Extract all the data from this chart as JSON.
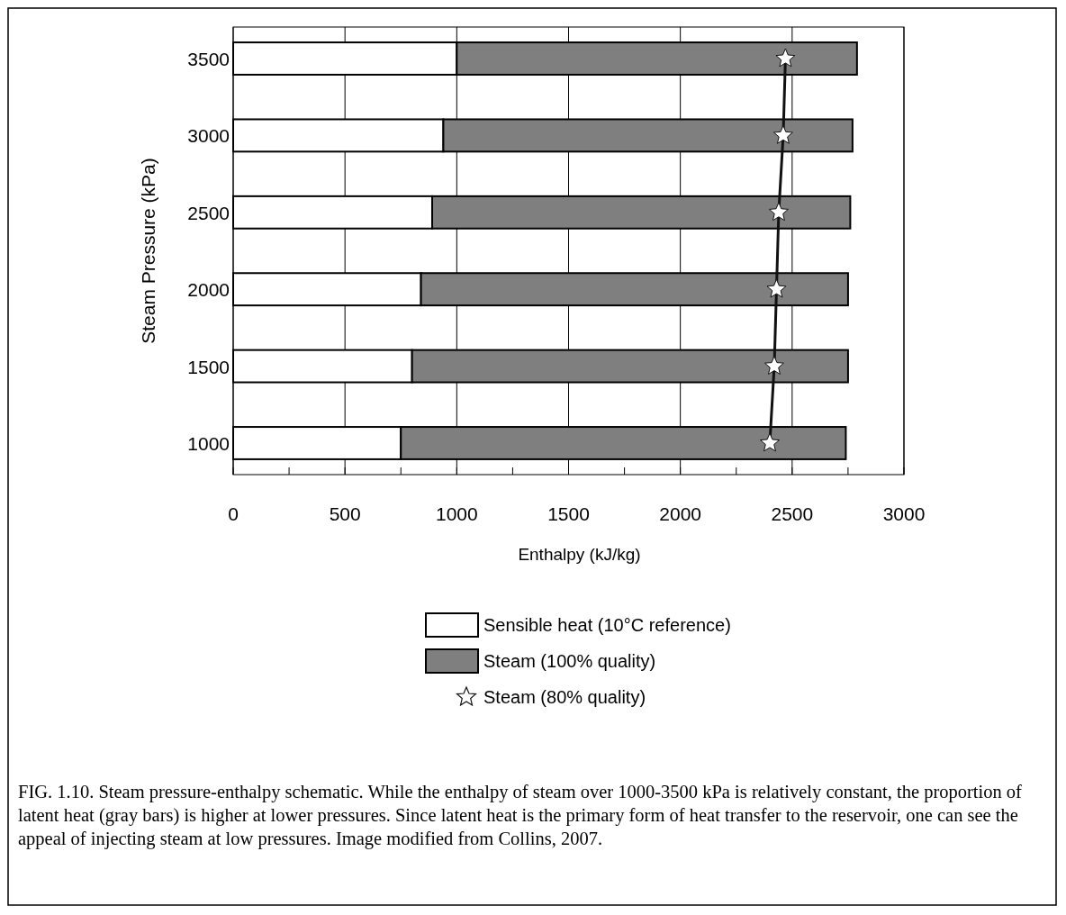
{
  "chart_data": {
    "type": "bar",
    "orientation": "horizontal",
    "stacked": true,
    "ylabel": "Steam Pressure (kPa)",
    "xlabel": "Enthalpy (kJ/kg)",
    "categories": [
      "3500",
      "3000",
      "2500",
      "2000",
      "1500",
      "1000"
    ],
    "series": [
      {
        "name": "Sensible heat (10°C reference)",
        "color": "#ffffff",
        "values": [
          1000,
          940,
          890,
          840,
          800,
          750
        ]
      },
      {
        "name": "Steam (100% quality)",
        "color": "#7f7f7f",
        "values": [
          1790,
          1830,
          1870,
          1910,
          1950,
          1990
        ]
      },
      {
        "name": "Steam (80% quality)",
        "type": "line",
        "marker": "star",
        "color": "#111111",
        "values": [
          2470,
          2460,
          2440,
          2430,
          2420,
          2400
        ]
      }
    ],
    "xlim": [
      0,
      3000
    ],
    "xticks": [
      0,
      {
        "value": 250,
        "label": null
      },
      500,
      {
        "value": 750,
        "label": null
      },
      1000,
      {
        "value": 1250,
        "label": null
      },
      1500,
      {
        "value": 1750,
        "label": null
      },
      2000,
      {
        "value": 2250,
        "label": null
      },
      2500,
      {
        "value": 2750,
        "label": null
      },
      3000
    ],
    "grid": "x",
    "legend": "bottom",
    "annotations": [
      "FIG. 1.10. Steam pressure-enthalpy schematic.  While the enthalpy of steam over 1000-3500 kPa is relatively constant, the proportion of latent heat (gray bars) is higher at lower pressures.  Since latent heat is the primary form of heat transfer to the reservoir, one can see the appeal of injecting steam at low pressures.  Image modified from Collins, 2007."
    ]
  }
}
